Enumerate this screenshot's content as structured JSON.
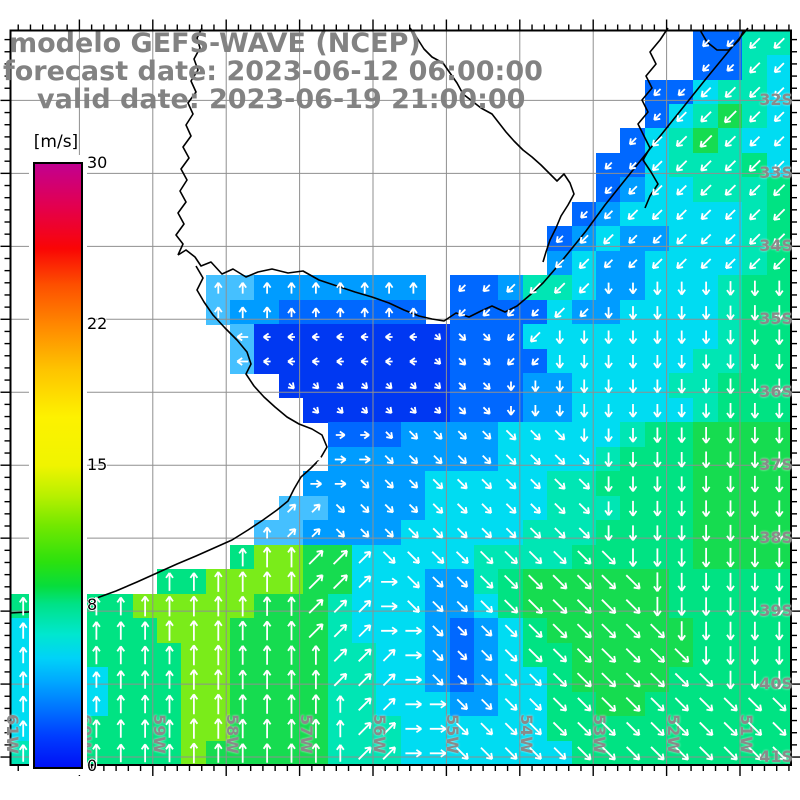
{
  "title": {
    "line1": "modelo GEFS-WAVE (NCEP)",
    "line2": "forecast date: 2023-06-12 06:00:00",
    "line3": "valid date: 2023-06-19 21:00:00",
    "color": "#828282"
  },
  "colorbar": {
    "unit_label": "[m/s]",
    "min": 0,
    "max": 30,
    "ticks": [
      {
        "label": "30",
        "value": 30
      },
      {
        "label": "22",
        "value": 22
      },
      {
        "label": "15",
        "value": 15
      },
      {
        "label": "8",
        "value": 8
      },
      {
        "label": "0",
        "value": 0
      }
    ],
    "gradient": [
      [
        "#c20090",
        0
      ],
      [
        "#e3004f",
        7
      ],
      [
        "#fa0505",
        14
      ],
      [
        "#fd4f00",
        20
      ],
      [
        "#ff8a00",
        27
      ],
      [
        "#fec300",
        34
      ],
      [
        "#fdf200",
        42
      ],
      [
        "#f0f400",
        50
      ],
      [
        "#b8f000",
        55
      ],
      [
        "#72e800",
        60
      ],
      [
        "#2ce10e",
        66
      ],
      [
        "#07dd3c",
        70
      ],
      [
        "#00e287",
        73
      ],
      [
        "#00e7cf",
        78
      ],
      [
        "#00d2f8",
        82
      ],
      [
        "#00a6ff",
        86
      ],
      [
        "#0077ff",
        90
      ],
      [
        "#003cff",
        95
      ],
      [
        "#0011f5",
        100
      ]
    ]
  },
  "axes": {
    "lat_labels": [
      "32S",
      "33S",
      "34S",
      "35S",
      "36S",
      "37S",
      "38S",
      "39S",
      "40S",
      "41S"
    ],
    "lon_labels": [
      "61W",
      "60W",
      "59W",
      "58W",
      "57W",
      "56W",
      "55W",
      "54W",
      "53W",
      "52W",
      "51W"
    ],
    "label_color": "#8a8a8a"
  },
  "map": {
    "land_color": "#ffffff",
    "grid_color": "#8f8f8f",
    "frame_color": "#000000",
    "coast_color": "#000000",
    "arrow_color": "#ffffff",
    "sea_palette": {
      "B": "#0038f2",
      "b": "#0068ff",
      "L": "#009cff",
      "l": "#45c0ff",
      "c": "#00dcf2",
      "C": "#00e6b4",
      "g": "#00e383",
      "G": "#16dc50",
      "y": "#7aec1a"
    },
    "wind_grid": {
      "cols": 32,
      "rows": 30,
      "cell_colors": [
        "............................bbCC",
        "............................bbCc",
        "..........................bbcCCc",
        "..........................bcCGCc",
        ".........................bcCGCcc",
        "........................bbcCCCgc",
        "........................bLccCCCg",
        ".......................bLcccccCg",
        "......................bLcLLcccCg",
        "......................LcLLccccCg",
        "........llLLLLLLL.bbLCCcLLcccCgg",
        "........lLLbbbbbb.bbbbcLLccccCgg",
        ".........lBBBBBBBBbbbccccccccCgg",
        ".........lBBBBBBBBbbbbccccccCCgg",
        "...........BBBBBBBbbbLLccccCCggg",
        "............BBBBBBbbbLLcccccCggg",
        ".............bbbLLLLcccccCggGGGG",
        ".............LLLLLLLccccCgggGGGG",
        "............LLLLLcccccCCggggGGGG",
        "...........llLLLLcccccCCCgggGGGG",
        "..........llLLLLcccccCCCggggGGGG",
        ".........gyyGGcccccCCCCgggggGGGG",
        "......ggyyyyGGcccLLCgGGGGGGggggg",
        "gggggyyyyyGGGCcccLLcgGGGGGGggggg",
        "ccggggyyyGGGGCcccLbLcgGGGGGGgggg",
        "cccggggyyGGGGCCccLbLcggGGGGGgggg",
        "ccccgggyyGGGGCCccLbLccgGGGGggggg",
        "ccccgggyyGGGGCCcccLLccggGGgggggg",
        "cCCggggyyGGGGCCCccccccgggggggggg",
        "CCCggggyGGGGGCCCcccccccggggggggg"
      ],
      "arrow_dirs": [
        "............................CCCC",
        "............................CCCC",
        "..........................CCCCCC",
        "..........................CCCCCC",
        ".........................CCCCCCC",
        "........................CCCCCCCC",
        "........................CCCCCCCC",
        ".......................CCCCCCCCC",
        "......................CCCCCCCCCC",
        "......................CCCCCCCCCC",
        "........NNNNNNNNN.CCCCCCSSSSSSSS",
        "........NNNNNNNNN.CCCCCCSSSSSSSS",
        ".........WWWWWWWWBBBCCSSSSSSSSSS",
        ".........WWWWWWWWBBBCCSSSSSSSSSS",
        "...........BBBBBBBBBSSSSSSSSSSSS",
        "............BBBBBBBBSSSSSSSSSSSS",
        ".............EEBBBBBBBBSSSSSSSSS",
        "............EEEBBBBBBBBBSSSSSSSS",
        "............EEBBBBBBBBBBSSSSSSSS",
        "...........AABBBBBBBBBBBSSSSSSSS",
        "..........NAABBBBBBBBBBBSSSSSSSS",
        ".........NNNAAABBBBBBBBBBSSSSSSS",
        "......NNNNNNAAAEBBBBBBBBBBSSSSSS",
        "NNNNNNNNNNNNAAAEBBBBBBBBBBSSSSSS",
        "NNNNNNNNNNNNAAAEEBBBBBBBBBBSSSSS",
        "NNNNNNNNNNNNNAAAEBBBBBBBBBBBSSSS",
        "NNNNNNNNNNNNNAAAEBBBBBBBBBBBBSSS",
        "NNNNNNNNNNNNNNAAEEBBBBBBBBBBBBBB",
        "NNNNNNNNNNNNNNAAEEBBBBBBBBBBBBBB",
        "NNNNNNNNNNNNNNAAEEBBBBBBBBBBBBBB"
      ]
    },
    "coastlines": [
      "M748,28 L728,52 705,80 685,105 665,130 645,155 625,180 605,205 586,231 569,252 556,268 543,283 530,295 517,306 505,312 492,306 481,311 469,317 456,313 444,321 432,319 419,316 404,310 389,303 372,297 355,292 337,286 319,280 303,271 288,273 272,269 258,272 246,277 233,269 222,274 211,262 201,266 195,257 186,250 178,255",
      "M178,255 L183,244 176,235 184,224 178,213 186,202 180,191 187,180 181,169 189,158 183,147 191,136 186,125 193,114 188,103 196,92 191,81 198,70 194,59 200,48 197,38 202,28",
      "M196,266 L203,278 197,290 204,302 213,315 225,328 237,340 247,352 251,364 246,374 254,386 264,397 275,407 287,417 299,424 312,429 322,435 327,447 320,459 310,469 301,477 294,489 288,501 277,510 263,520 248,530 232,540 214,548 196,556 177,564 157,573 137,582 116,591 94,599 72,605 50,610 28,612 10,613",
      "M410,28 L417,38 424,49 432,57 443,63 450,73 457,83 463,94 472,101 481,108 492,114 499,123 506,132 514,141 523,150 532,157 541,165 549,173 557,181 564,174 570,183 574,194 568,205 561,216 556,228 550,240 546,252 543,262",
      "M668,28 L660,40 650,52 656,64 646,76 652,88 642,100 648,112 638,124 644,136 650,148 643,160 651,172 658,184 650,196 645,208",
      "M700,30 L707,42 717,50 729,50 739,40 744,30"
    ]
  }
}
